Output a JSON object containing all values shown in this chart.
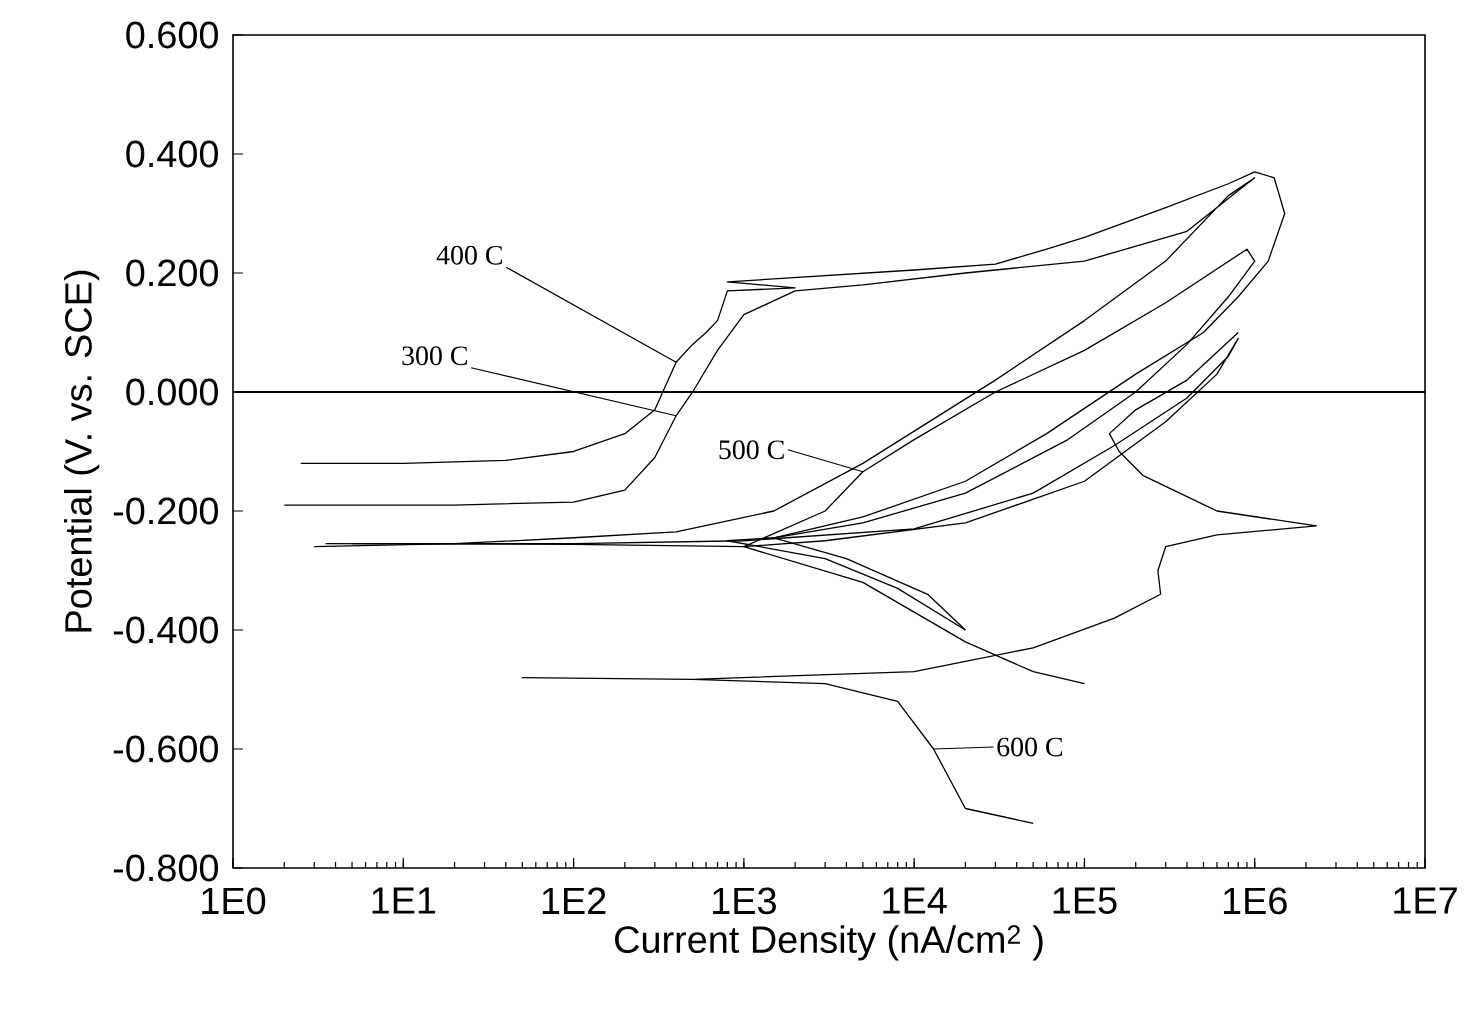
{
  "chart_data": {
    "type": "line",
    "xlabel": "Current Density (nA/cm$^{2}$ )",
    "ylabel": "Potential (V. vs. SCE)",
    "log": "x",
    "grid": false,
    "marker": "none",
    "line_style": "solid",
    "xlim": [
      1,
      10000000
    ],
    "ylim": [
      -0.8,
      0.6
    ],
    "xticks": [
      {
        "value": 1,
        "label": "1E0"
      },
      {
        "value": 10,
        "label": "1E1"
      },
      {
        "value": 100,
        "label": "1E2"
      },
      {
        "value": 1000,
        "label": "1E3"
      },
      {
        "value": 10000,
        "label": "1E4"
      },
      {
        "value": 100000,
        "label": "1E5"
      },
      {
        "value": 1000000,
        "label": "1E6"
      },
      {
        "value": 10000000,
        "label": "1E7"
      }
    ],
    "yticks": [
      {
        "value": -0.8,
        "label": "-0.800"
      },
      {
        "value": -0.6,
        "label": "-0.600"
      },
      {
        "value": -0.4,
        "label": "-0.400"
      },
      {
        "value": -0.2,
        "label": "-0.200"
      },
      {
        "value": 0,
        "label": "0.000"
      },
      {
        "value": 0.2,
        "label": "0.200"
      },
      {
        "value": 0.4,
        "label": "0.400"
      },
      {
        "value": 0.6,
        "label": "0.600"
      }
    ],
    "ref_lines": [
      {
        "axis": "y",
        "value": 0,
        "color": "#000000"
      }
    ],
    "annotations": [
      {
        "text": "400 C",
        "x": 400,
        "y": 0.05
      },
      {
        "text": "300 C",
        "x": 400,
        "y": -0.04
      },
      {
        "text": "500 C",
        "x": 5000,
        "y": -0.134
      },
      {
        "text": "600 C",
        "x": 13000,
        "y": -0.6
      }
    ],
    "series": [
      {
        "color": "#000000",
        "x": [
          2.5,
          10,
          40,
          100,
          200,
          300,
          400,
          500,
          600,
          700,
          800,
          2000,
          800,
          1500,
          10000,
          30000,
          60000,
          100000,
          300000,
          700000,
          1000000,
          1300000,
          1500000,
          1200000,
          800000,
          500000,
          200000,
          60000,
          20000,
          5000,
          1500,
          4000,
          12000,
          20000
        ],
        "values": [
          -0.12,
          -0.12,
          -0.115,
          -0.1,
          -0.07,
          -0.03,
          0.05,
          0.08,
          0.1,
          0.12,
          0.17,
          0.175,
          0.185,
          0.19,
          0.205,
          0.215,
          0.24,
          0.26,
          0.31,
          0.35,
          0.37,
          0.36,
          0.3,
          0.22,
          0.16,
          0.1,
          0.03,
          -0.07,
          -0.15,
          -0.21,
          -0.245,
          -0.28,
          -0.34,
          -0.4
        ]
      },
      {
        "color": "#000000",
        "x": [
          2,
          20,
          100,
          200,
          300,
          400,
          500,
          700,
          1000,
          2000,
          5000,
          20000,
          100000,
          400000,
          900000,
          1000000,
          700000,
          300000,
          100000,
          30000,
          5000,
          1500,
          400,
          100,
          20,
          3
        ],
        "values": [
          -0.19,
          -0.19,
          -0.185,
          -0.165,
          -0.11,
          -0.04,
          0.0,
          0.07,
          0.13,
          0.17,
          0.18,
          0.2,
          0.22,
          0.27,
          0.35,
          0.36,
          0.33,
          0.22,
          0.12,
          0.02,
          -0.12,
          -0.2,
          -0.235,
          -0.245,
          -0.255,
          -0.26
        ]
      },
      {
        "color": "#000000",
        "x": [
          3.5,
          100,
          1000,
          3000,
          5000,
          10000,
          30000,
          100000,
          300000,
          900000,
          1000000,
          700000,
          400000,
          200000,
          80000,
          20000,
          5000,
          1500,
          800,
          3000,
          8000,
          20000
        ],
        "values": [
          -0.255,
          -0.256,
          -0.26,
          -0.2,
          -0.134,
          -0.08,
          0.0,
          0.07,
          0.15,
          0.24,
          0.22,
          0.16,
          0.08,
          0.0,
          -0.08,
          -0.17,
          -0.22,
          -0.245,
          -0.25,
          -0.28,
          -0.33,
          -0.4
        ]
      },
      {
        "color": "#000000",
        "x": [
          5,
          100,
          1000,
          10000,
          50000,
          150000,
          400000,
          700000,
          800000,
          600000,
          300000,
          100000,
          20000,
          3000,
          1000,
          5000,
          20000,
          50000,
          100000
        ],
        "values": [
          -0.255,
          -0.255,
          -0.25,
          -0.23,
          -0.17,
          -0.09,
          -0.01,
          0.06,
          0.09,
          0.03,
          -0.05,
          -0.15,
          -0.22,
          -0.25,
          -0.26,
          -0.32,
          -0.42,
          -0.47,
          -0.49
        ]
      },
      {
        "color": "#000000",
        "x": [
          50000,
          20000,
          13000,
          8000,
          3000,
          500,
          50,
          500,
          10000,
          50000,
          150000,
          280000,
          270000,
          300000,
          600000,
          2300000,
          600000,
          220000,
          160000,
          140000,
          200000,
          400000,
          800000
        ],
        "values": [
          -0.725,
          -0.7,
          -0.6,
          -0.52,
          -0.49,
          -0.483,
          -0.48,
          -0.483,
          -0.47,
          -0.43,
          -0.38,
          -0.34,
          -0.3,
          -0.26,
          -0.24,
          -0.225,
          -0.2,
          -0.14,
          -0.1,
          -0.07,
          -0.03,
          0.02,
          0.1
        ]
      }
    ]
  }
}
